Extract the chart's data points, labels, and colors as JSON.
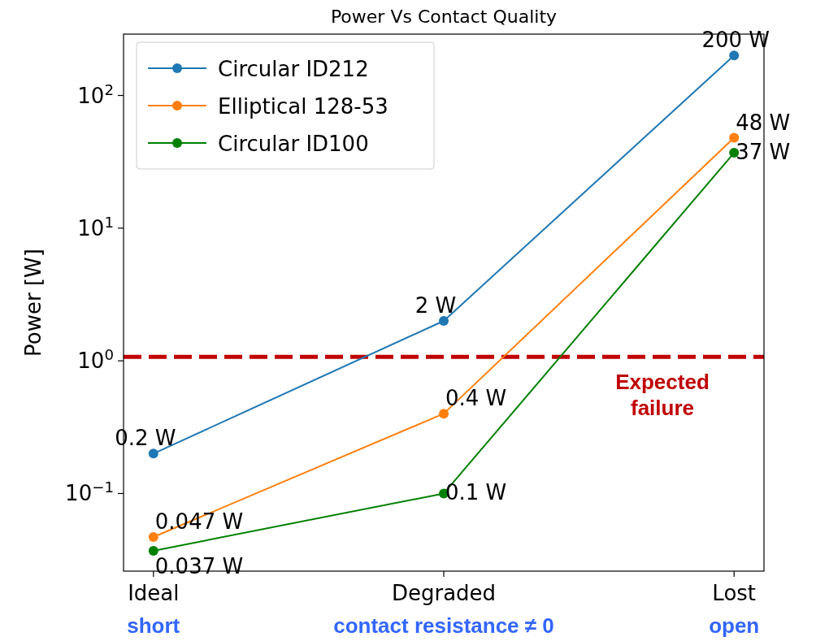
{
  "chart_data": {
    "type": "line",
    "title": "Power Vs Contact Quality",
    "ylabel": "Power [W]",
    "categories": [
      "Ideal",
      "Degraded",
      "Lost"
    ],
    "series": [
      {
        "name": "Circular ID212",
        "color": "#1f77b4",
        "values": [
          0.2,
          2,
          200
        ],
        "value_labels": [
          "0.2 W",
          "2 W",
          "200 W"
        ]
      },
      {
        "name": "Elliptical 128-53",
        "color": "#ff7f0e",
        "values": [
          0.047,
          0.4,
          48
        ],
        "value_labels": [
          "0.047 W",
          "0.4 W",
          "48 W"
        ]
      },
      {
        "name": "Circular ID100",
        "color": "#008000",
        "values": [
          0.037,
          0.1,
          37
        ],
        "value_labels": [
          "0.037 W",
          "0.1 W",
          "37 W"
        ]
      }
    ],
    "log": "y",
    "ylim": [
      0.026,
      290
    ],
    "yticks": [
      {
        "value": 0.1,
        "label": "10$^{−1}$"
      },
      {
        "value": 1,
        "label": "10$^{0}$"
      },
      {
        "value": 10,
        "label": "10$^{1}$"
      },
      {
        "value": 100,
        "label": "10$^{2}$"
      }
    ],
    "ref_lines": [
      {
        "axis": "y",
        "value": 1.07,
        "label": "Expected failure",
        "color": "#c00000",
        "line_style": "dashed"
      }
    ],
    "annotations": [
      "short",
      "contact resistance ≠ 0",
      "open"
    ],
    "legend": "top left",
    "grid": false,
    "marker": "circle",
    "line_style": "solid"
  }
}
